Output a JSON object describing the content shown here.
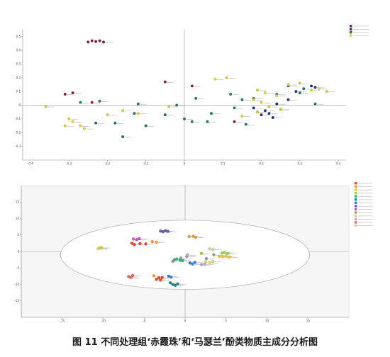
{
  "caption": "图 11  不同处理组‘赤霞珠’和‘马瑟兰’酚类物质主成分分析图",
  "chart_data": [
    {
      "type": "scatter",
      "subtype": "loading_plot",
      "xlim": [
        -0.42,
        0.42
      ],
      "ylim": [
        -0.4,
        0.55
      ],
      "xticks": [
        -0.4,
        -0.3,
        -0.2,
        -0.1,
        0,
        0.1,
        0.2,
        0.3,
        0.4
      ],
      "yticks": [
        -0.3,
        -0.2,
        -0.1,
        0,
        0.1,
        0.2,
        0.3,
        0.4,
        0.5
      ],
      "grid": false,
      "zero_lines": true,
      "legend_position": "top-right",
      "series": [
        {
          "color": "#8b1a3a",
          "points": [
            [
              -0.29,
              0.09
            ],
            [
              -0.31,
              0.08
            ],
            [
              -0.24,
              0.02
            ],
            [
              -0.05,
              0.17
            ],
            [
              0.02,
              0.14
            ],
            [
              0.13,
              -0.12
            ]
          ]
        },
        {
          "color": "#1f2e8c",
          "points": [
            [
              0.18,
              -0.02
            ],
            [
              0.19,
              -0.05
            ],
            [
              0.2,
              -0.07
            ],
            [
              0.21,
              -0.04
            ],
            [
              0.22,
              -0.06
            ],
            [
              0.23,
              -0.09
            ],
            [
              0.25,
              -0.03
            ],
            [
              0.24,
              0.01
            ],
            [
              0.27,
              0.04
            ],
            [
              0.33,
              0.14
            ],
            [
              0.34,
              0.13
            ],
            [
              0.29,
              0.1
            ]
          ]
        },
        {
          "color": "#1b7a55",
          "points": [
            [
              -0.27,
              0.02
            ],
            [
              -0.22,
              0.03
            ],
            [
              -0.12,
              0.01
            ],
            [
              -0.02,
              0.0
            ],
            [
              -0.05,
              -0.07
            ],
            [
              0.0,
              -0.1
            ],
            [
              -0.13,
              -0.06
            ],
            [
              -0.23,
              -0.13
            ],
            [
              -0.18,
              -0.13
            ],
            [
              -0.16,
              -0.23
            ],
            [
              -0.1,
              -0.15
            ],
            [
              0.02,
              -0.12
            ],
            [
              0.13,
              -0.02
            ],
            [
              0.15,
              0.04
            ],
            [
              0.18,
              0.05
            ],
            [
              0.24,
              0.08
            ],
            [
              0.3,
              0.09
            ],
            [
              0.31,
              0.12
            ],
            [
              0.27,
              0.14
            ],
            [
              0.34,
              0.01
            ],
            [
              0.07,
              -0.06
            ],
            [
              0.06,
              -0.12
            ],
            [
              0.16,
              -0.14
            ],
            [
              0.12,
              0.08
            ],
            [
              0.03,
              0.05
            ]
          ]
        },
        {
          "color": "#e0cc3a",
          "points": [
            [
              -0.36,
              -0.01
            ],
            [
              -0.3,
              -0.1
            ],
            [
              -0.29,
              -0.12
            ],
            [
              -0.27,
              -0.15
            ],
            [
              -0.26,
              -0.17
            ],
            [
              -0.31,
              -0.15
            ],
            [
              -0.2,
              -0.07
            ],
            [
              -0.16,
              -0.04
            ],
            [
              -0.12,
              -0.06
            ],
            [
              -0.04,
              -0.01
            ],
            [
              0.08,
              0.19
            ],
            [
              0.11,
              0.2
            ],
            [
              0.19,
              0.11
            ],
            [
              0.21,
              0.09
            ],
            [
              0.24,
              0.07
            ],
            [
              0.27,
              0.15
            ],
            [
              0.3,
              0.16
            ],
            [
              0.33,
              0.11
            ],
            [
              0.35,
              0.12
            ],
            [
              0.37,
              0.1
            ],
            [
              0.18,
              0.04
            ],
            [
              0.2,
              0.02
            ],
            [
              0.22,
              -0.01
            ],
            [
              0.15,
              -0.08
            ],
            [
              0.19,
              -0.05
            ],
            [
              0.25,
              -0.03
            ]
          ]
        }
      ],
      "cluster": {
        "color": "#8b1a3a",
        "points": [
          [
            -0.25,
            0.46
          ],
          [
            -0.24,
            0.47
          ],
          [
            -0.23,
            0.465
          ],
          [
            -0.22,
            0.47
          ],
          [
            -0.21,
            0.46
          ]
        ]
      }
    },
    {
      "type": "scatter",
      "subtype": "score_plot",
      "xlim": [
        -20,
        20
      ],
      "ylim": [
        -20,
        20
      ],
      "xticks": [
        -15,
        -10,
        -5,
        0,
        5,
        10,
        15
      ],
      "yticks": [
        -15,
        -10,
        -5,
        0,
        5,
        10,
        15
      ],
      "grid": false,
      "zero_lines": true,
      "ellipse": {
        "cx": 0,
        "cy": -1,
        "rx": 15.2,
        "ry": 10.5
      },
      "legend_position": "right",
      "series": [
        {
          "color": "#e8452c",
          "points": [
            [
              -6.5,
              2.5
            ],
            [
              -6.2,
              2.1
            ],
            [
              -5.5,
              2.4
            ],
            [
              -4.8,
              2.3
            ],
            [
              -3.5,
              -8.5
            ],
            [
              -3.2,
              -8.0
            ],
            [
              -3.0,
              -8.7
            ],
            [
              -2.8,
              -7.9
            ]
          ]
        },
        {
          "color": "#f39a34",
          "points": [
            [
              -4.0,
              3.0
            ],
            [
              -3.5,
              2.8
            ],
            [
              0.5,
              4.5
            ],
            [
              1.0,
              4.6
            ],
            [
              1.3,
              4.3
            ],
            [
              -3.8,
              -7.4
            ]
          ]
        },
        {
          "color": "#f0c040",
          "points": [
            [
              4.2,
              -1.5
            ],
            [
              4.6,
              -1.6
            ],
            [
              5.0,
              -1.4
            ],
            [
              5.4,
              -1.7
            ],
            [
              -10.5,
              1.0
            ],
            [
              -10.2,
              1.2
            ]
          ]
        },
        {
          "color": "#9ccf42",
          "points": [
            [
              4.5,
              -0.5
            ],
            [
              4.8,
              -0.3
            ],
            [
              5.2,
              -0.6
            ],
            [
              2.0,
              -0.6
            ]
          ]
        },
        {
          "color": "#2fb37c",
          "points": [
            [
              -1.3,
              -2.5
            ],
            [
              -1.0,
              -2.3
            ],
            [
              -0.6,
              -2.6
            ],
            [
              -0.3,
              -2.8
            ]
          ]
        },
        {
          "color": "#1a8a8a",
          "points": [
            [
              -1.5,
              -10.0
            ],
            [
              -1.2,
              -10.3
            ],
            [
              -0.9,
              -9.8
            ],
            [
              -1.8,
              -9.5
            ]
          ]
        },
        {
          "color": "#3a7fd0",
          "points": [
            [
              -2.0,
              -7.5
            ],
            [
              -1.7,
              -7.8
            ],
            [
              0.6,
              -3.5
            ],
            [
              0.9,
              -3.8
            ],
            [
              1.2,
              -3.3
            ]
          ]
        },
        {
          "color": "#6a59b8",
          "points": [
            [
              -3.0,
              6.2
            ],
            [
              -2.7,
              6.0
            ],
            [
              -2.4,
              6.3
            ],
            [
              -2.1,
              6.1
            ]
          ]
        },
        {
          "color": "#c45ab3",
          "points": [
            [
              -6.3,
              3.8
            ],
            [
              -5.9,
              3.6
            ],
            [
              -5.6,
              3.9
            ]
          ]
        },
        {
          "color": "#9a9a9a",
          "points": [
            [
              -1.5,
              -3.0
            ],
            [
              -0.5,
              -2.0
            ],
            [
              0.2,
              -1.5
            ],
            [
              3.5,
              -1.0
            ],
            [
              2.6,
              -2.2
            ]
          ]
        },
        {
          "color": "#d8d870",
          "points": [
            [
              2.5,
              -3.2
            ],
            [
              3.0,
              -3.4
            ],
            [
              3.4,
              -3.0
            ],
            [
              -10.6,
              0.8
            ]
          ]
        },
        {
          "color": "#b8a8d8",
          "points": [
            [
              2.0,
              -4.0
            ],
            [
              2.4,
              -3.9
            ],
            [
              0.3,
              -1.0
            ]
          ]
        },
        {
          "color": "#e06868",
          "points": [
            [
              -6.9,
              -7.6
            ],
            [
              -6.6,
              -7.9
            ],
            [
              -6.4,
              -7.3
            ]
          ]
        },
        {
          "color": "#d0d0a0",
          "points": [
            [
              3.0,
              0.8
            ],
            [
              3.4,
              0.6
            ]
          ]
        }
      ]
    }
  ]
}
